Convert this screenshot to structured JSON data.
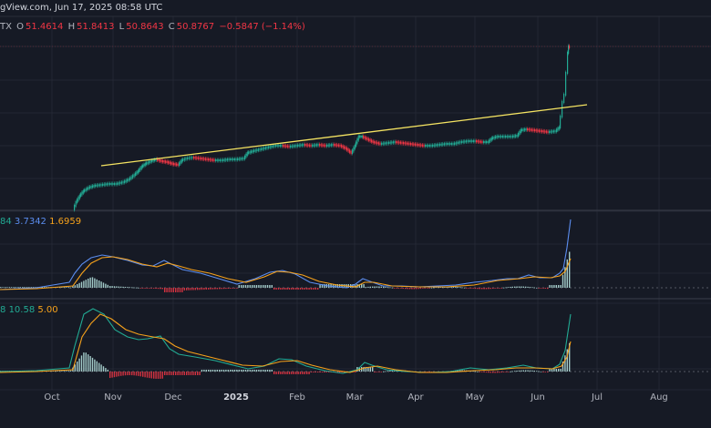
{
  "header": {
    "source_text": "gView.com, Jun 17, 2025 08:58 UTC",
    "ticker": "TX",
    "open_label": "O",
    "open_value": "51.4614",
    "high_label": "H",
    "high_value": "51.8413",
    "low_label": "L",
    "low_value": "50.8643",
    "close_label": "C",
    "close_value": "50.8767",
    "change": "−0.5847 (−1.14%)"
  },
  "indicator1": {
    "v1": "84",
    "v2": "3.7342",
    "v3": "1.6959"
  },
  "indicator2": {
    "v1": "8",
    "v2": "10.58",
    "v3": "5.00"
  },
  "x_axis": [
    "Oct",
    "Nov",
    "Dec",
    "2025",
    "Feb",
    "Mar",
    "Apr",
    "May",
    "Jun",
    "Jul",
    "Aug"
  ],
  "colors": {
    "background": "#161a25",
    "up": "#22ab94",
    "down": "#f23645",
    "trendline": "#f5e462",
    "macd_line": "#5b8def",
    "signal_line": "#f7a21b",
    "hist_pos": "#b2dfdb",
    "hist_neg": "#f23645"
  },
  "chart_data": {
    "type": "candlestick",
    "title": "",
    "x_labels": [
      "Oct",
      "Nov",
      "Dec",
      "2025",
      "Feb",
      "Mar",
      "Apr",
      "May",
      "Jun",
      "Jul",
      "Aug"
    ],
    "last_candle": {
      "open": 51.4614,
      "high": 51.8413,
      "low": 50.8643,
      "close": 50.8767
    },
    "trendline": "ascending resistance line from mid-Oct to mid-Jun, broken upward in June",
    "panels": [
      "price",
      "MACD",
      "MACD"
    ],
    "grid": true
  }
}
